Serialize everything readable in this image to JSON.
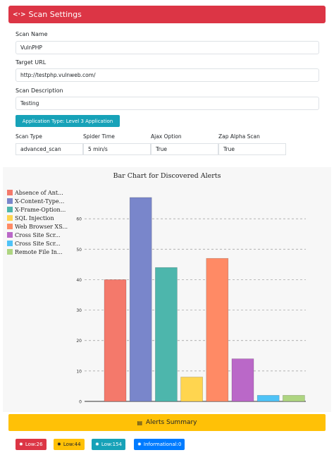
{
  "header": {
    "icon": "code-icon",
    "icon_glyph": "<·>",
    "title": "Scan Settings"
  },
  "form": {
    "scan_name_label": "Scan Name",
    "scan_name_value": "VulnPHP",
    "target_url_label": "Target URL",
    "target_url_value": "http://testphp.vulnweb.com/",
    "description_label": "Scan Description",
    "description_value": "Testing",
    "application_type": "Application Type: Level 3 Application"
  },
  "scan_table": {
    "headers": [
      "Scan Type",
      "Spider Time",
      "Ajax Option",
      "Zap Alpha Scan"
    ],
    "values": [
      "advanced_scan",
      "5 min/s",
      "True",
      "True"
    ]
  },
  "chart_data": {
    "type": "bar",
    "title": "Bar Chart for Discovered Alerts",
    "categories": [
      "Absence of Ant...",
      "X-Content-Type...",
      "X-Frame-Option...",
      "SQL Injection",
      "Web Browser XS...",
      "Cross Site Scr...",
      "Cross Site Scr...",
      "Remote File In..."
    ],
    "values": [
      40,
      67,
      44,
      8,
      47,
      14,
      2,
      2
    ],
    "colors": [
      "#f4796b",
      "#7986cb",
      "#4db6ac",
      "#ffd54f",
      "#ff8a65",
      "#ba68c8",
      "#4fc3f7",
      "#aed581"
    ],
    "ylim": [
      0,
      70
    ],
    "yticks": [
      "0",
      "10",
      "20",
      "30",
      "40",
      "50",
      "60"
    ],
    "grid": true,
    "legend_position": "left"
  },
  "summary": {
    "icon": "document-icon",
    "icon_glyph": "▤",
    "title": "Alerts Summary"
  },
  "badges": [
    {
      "label": "Low:26",
      "color": "#dc3545",
      "text_color": "#ffffff",
      "icon": "bug-icon"
    },
    {
      "label": "Low:44",
      "color": "#ffc107",
      "text_color": "#212529",
      "icon": "bug-icon"
    },
    {
      "label": "Low:154",
      "color": "#17a2b8",
      "text_color": "#ffffff",
      "icon": "bug-icon"
    },
    {
      "label": "Informational:0",
      "color": "#007bff",
      "text_color": "#ffffff",
      "icon": "bug-icon"
    }
  ]
}
